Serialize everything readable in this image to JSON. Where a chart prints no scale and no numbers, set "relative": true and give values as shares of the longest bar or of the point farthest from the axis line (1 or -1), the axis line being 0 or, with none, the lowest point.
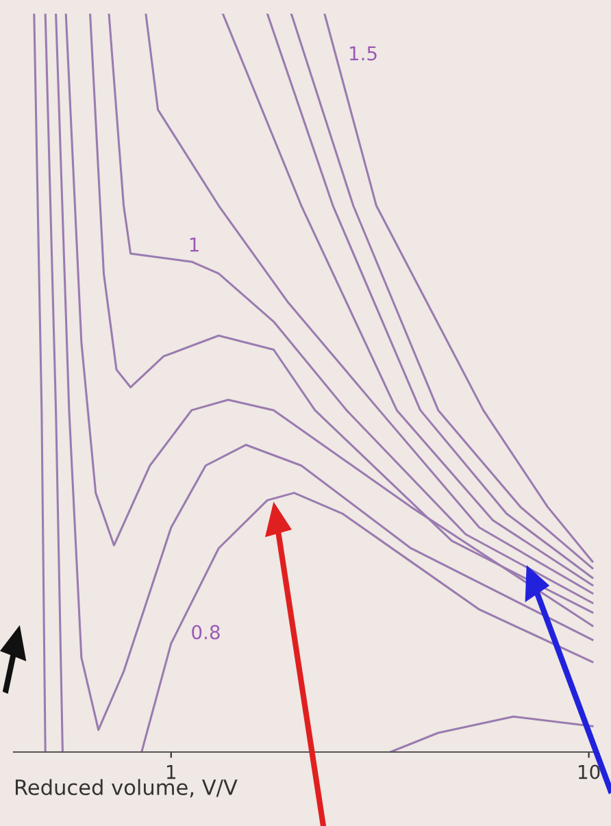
{
  "chart_data": {
    "type": "line",
    "relative": true,
    "xlabel": "Reduced volume, V/V",
    "log": "x",
    "xlim": [
      0.42,
      10.4
    ],
    "xticks": [
      1,
      10
    ],
    "legend": false,
    "grid": false,
    "marker": "none",
    "line_style": "solid",
    "series": [
      {
        "color": "#9a7bb0",
        "x": [
          0.47,
          0.49,
          0.5,
          2.0,
          3.35,
          4.36,
          6.6,
          10.2
        ],
        "values": [
          1.0,
          0.463,
          0.0,
          null,
          0.0,
          0.026,
          0.048,
          0.035
        ]
      },
      {
        "name": "0.8",
        "color": "#9a7bb0",
        "x": [
          0.5,
          0.53,
          0.55,
          0.7,
          0.85,
          1.0,
          1.3,
          1.7,
          1.97,
          2.57,
          3.75,
          5.47,
          10.2
        ],
        "values": [
          1.0,
          0.463,
          0.0,
          null,
          0.0,
          0.147,
          0.276,
          0.341,
          0.351,
          0.323,
          0.258,
          0.193,
          0.122
        ]
      },
      {
        "color": "#9a7bb0",
        "x": [
          0.53,
          0.57,
          0.61,
          0.67,
          0.77,
          1.0,
          1.21,
          1.51,
          2.05,
          3.75,
          10.2
        ],
        "values": [
          1.0,
          0.463,
          0.128,
          0.03,
          0.109,
          0.304,
          0.388,
          0.416,
          0.388,
          0.276,
          0.152
        ]
      },
      {
        "color": "#9a7bb0",
        "x": [
          0.56,
          0.61,
          0.66,
          0.73,
          0.89,
          1.12,
          1.37,
          1.76,
          3.75,
          10.2
        ],
        "values": [
          1.0,
          0.555,
          0.351,
          0.28,
          0.388,
          0.463,
          0.477,
          0.463,
          0.332,
          0.171
        ]
      },
      {
        "color": "#9a7bb0",
        "x": [
          0.64,
          0.69,
          0.74,
          0.8,
          0.96,
          1.3,
          1.76,
          2.21,
          4.7,
          10.2
        ],
        "values": [
          1.0,
          0.648,
          0.518,
          0.494,
          0.536,
          0.564,
          0.545,
          0.463,
          0.286,
          0.189
        ]
      },
      {
        "name": "1",
        "color": "#9a7bb0",
        "x": [
          0.71,
          0.77,
          0.8,
          1.12,
          1.3,
          1.76,
          2.63,
          5.07,
          10.2
        ],
        "values": [
          1.0,
          0.74,
          0.675,
          0.664,
          0.648,
          0.583,
          0.463,
          0.295,
          0.202
        ]
      },
      {
        "color": "#9a7bb0",
        "x": [
          0.87,
          0.93,
          1.3,
          1.9,
          3.15,
          5.47,
          10.2
        ],
        "values": [
          1.0,
          0.87,
          0.74,
          0.61,
          0.463,
          0.304,
          0.215
        ]
      },
      {
        "color": "#9a7bb0",
        "x": [
          1.33,
          2.05,
          3.47,
          5.89,
          10.2
        ],
        "values": [
          1.0,
          0.74,
          0.463,
          0.314,
          0.226
        ]
      },
      {
        "color": "#9a7bb0",
        "x": [
          1.7,
          2.44,
          3.95,
          6.35,
          10.2
        ],
        "values": [
          1.0,
          0.74,
          0.463,
          0.323,
          0.236
        ]
      },
      {
        "color": "#9a7bb0",
        "x": [
          1.94,
          2.73,
          4.36,
          6.86,
          10.2
        ],
        "values": [
          1.0,
          0.74,
          0.463,
          0.332,
          0.249
        ]
      },
      {
        "name": "1.5",
        "color": "#9a7bb0",
        "x": [
          2.33,
          3.1,
          5.59,
          7.97,
          10.2
        ],
        "values": [
          1.0,
          0.74,
          0.463,
          0.332,
          0.258
        ]
      }
    ]
  }
}
